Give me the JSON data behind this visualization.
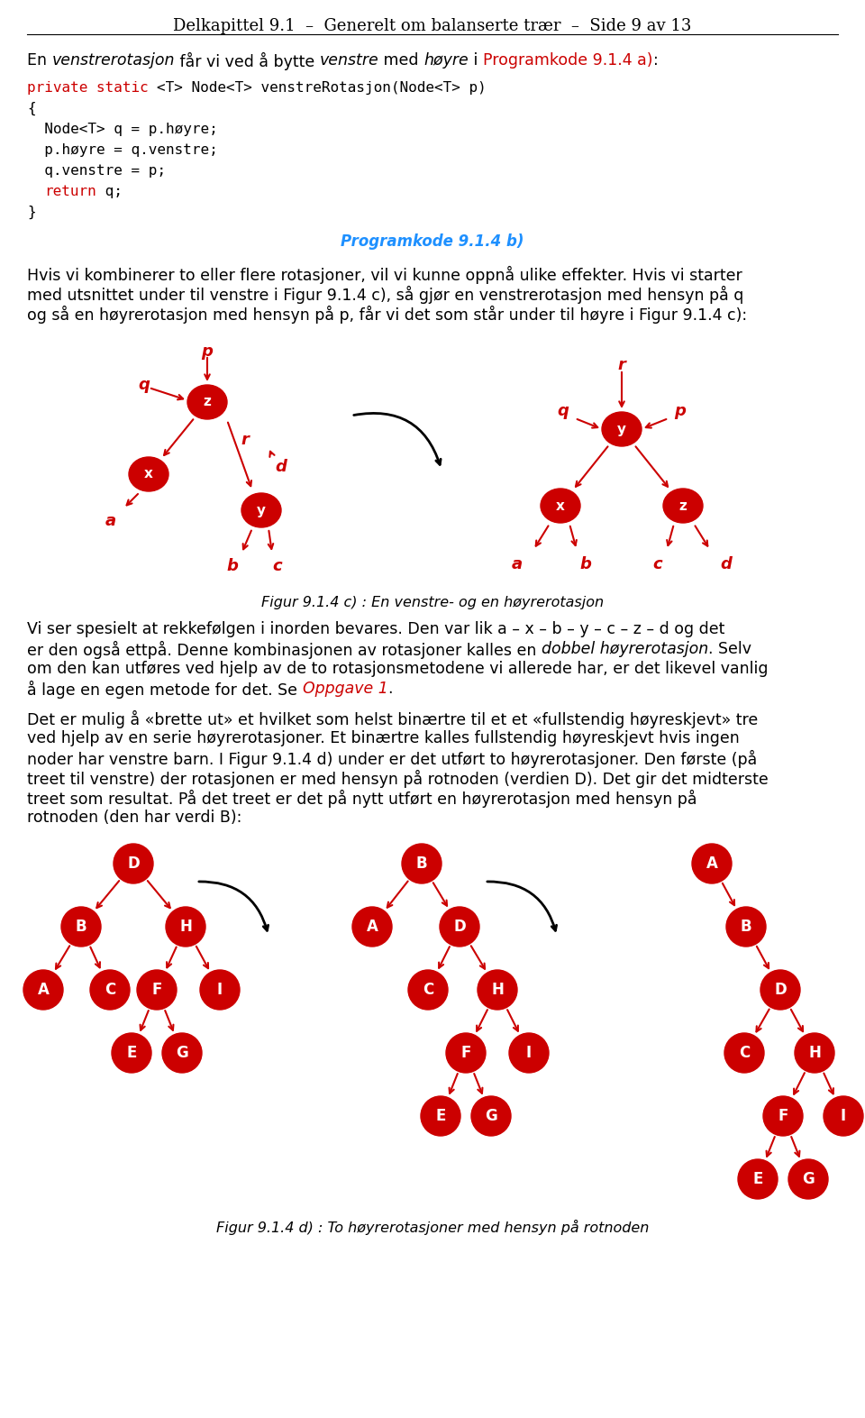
{
  "header": "Delkapittel 9.1  –  Generelt om balanserte trær  –  Side 9 av 13",
  "code_line1": "private static <T> Node<T> venstreRotasjon(Node<T> p)",
  "code_line2": "{",
  "code_line3": "  Node<T> q = p.høyre;",
  "code_line4": "  p.høyre = q.venstre;",
  "code_line5": "  q.venstre = p;",
  "code_line6a": "  ",
  "code_line6b": "return",
  "code_line6c": " q;",
  "code_line7": "}",
  "programkode_label": "Programkode 9.1.4 b)",
  "body_text": [
    "Hvis vi kombinerer to eller flere rotasjoner, vil vi kunne oppnå ulike effekter. Hvis vi starter",
    "med utsnittet under til venstre i Figur 9.1.4 c), så gjør en venstrerotasjon med hensyn på q",
    "og så en høyrerotasjon med hensyn på p, får vi det som står under til høyre i Figur 9.1.4 c):"
  ],
  "fig_c_caption": "Figur 9.1.4 c) : En venstre- og en høyrerotasjon",
  "body_text2_1": "Vi ser spesielt at rekkefølgen i inorden bevares. Den var lik a – x – b – y – c – z – d og det",
  "body_text2_2a": "er den også ettpå. Denne kombinasjonen av rotasjoner kalles en ",
  "body_text2_2b": "dobbel høyrerotasjon",
  "body_text2_2c": ". Selv",
  "body_text2_3": "om den kan utføres ved hjelp av de to rotasjonsmetodene vi allerede har, er det likevel vanlig",
  "body_text2_4a": "å lage en egen metode for det. Se ",
  "body_text2_4b": "Oppgave 1",
  "body_text2_4c": ".",
  "body_text3": [
    "Det er mulig å «brette ut» et hvilket som helst binærtre til et et «fullstendig høyreskjevt» tre",
    "ved hjelp av en serie høyrerotasjoner. Et binærtre kalles fullstendig høyreskjevt hvis ingen",
    "noder har venstre barn. I Figur 9.1.4 d) under er det utført to høyrerotasjoner. Den første (på",
    "treet til venstre) der rotasjonen er med hensyn på rotnoden (verdien D). Det gir det midterste",
    "treet som resultat. På det treet er det på nytt utført en høyrerotasjon med hensyn på",
    "rotnoden (den har verdi B):"
  ],
  "fig_d_caption": "Figur 9.1.4 d) : To høyrerotasjoner med hensyn på rotnoden",
  "node_color": "#CC0000",
  "arrow_color": "#CC0000",
  "code_keyword_color": "#CC0000",
  "programkode_color": "#1E90FF",
  "red_color": "#CC0000",
  "black": "#000000",
  "white": "#FFFFFF"
}
